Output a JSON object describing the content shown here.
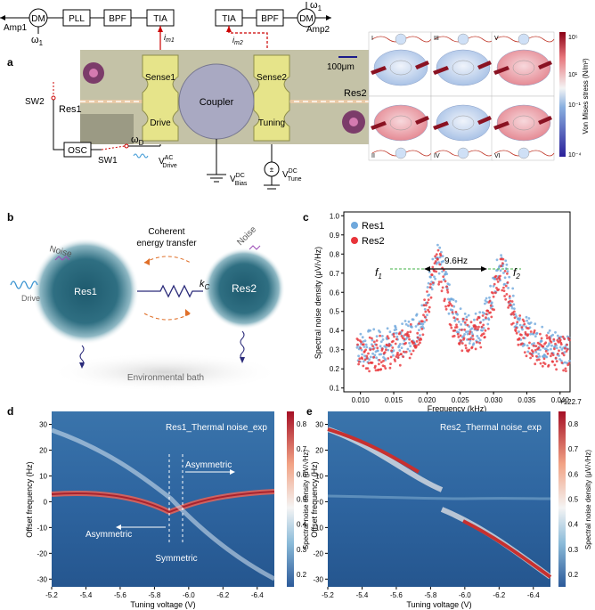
{
  "panel_labels": {
    "a": "a",
    "b": "b",
    "c": "c",
    "d": "d",
    "e": "e"
  },
  "schematic": {
    "dm_left": "DM",
    "dm_right": "DM",
    "pll": "PLL",
    "bpf_left": "BPF",
    "bpf_right": "BPF",
    "tia_left": "TIA",
    "tia_right": "TIA",
    "amp1": "Amp1",
    "amp2": "Amp2",
    "omega1_left": "ω",
    "omega1_right": "ω",
    "omega_sub": "1",
    "im1": "i",
    "im1_sub": "m1",
    "im2": "i",
    "im2_sub": "m2",
    "sw1": "SW1",
    "sw2": "SW2",
    "osc": "OSC",
    "omega_d": "ω",
    "omega_d_sub": "D",
    "v_drive": "V",
    "v_drive_sup": "AC",
    "v_drive_sub": "Drive",
    "v_bias": "V",
    "v_bias_sup": "DC",
    "v_bias_sub": "Bias",
    "v_tune": "V",
    "v_tune_sup": "DC",
    "v_tune_sub": "Tune"
  },
  "micrograph": {
    "sense1": "Sense1",
    "sense2": "Sense2",
    "drive": "Drive",
    "tuning": "Tuning",
    "coupler": "Coupler",
    "res1": "Res1",
    "res2": "Res2",
    "scale": "100μm"
  },
  "fem": {
    "labels": [
      "I",
      "II",
      "III",
      "IV",
      "V",
      "VI"
    ],
    "colorbar_label": "Von Mises stress (N/m²)",
    "ticks": [
      "10⁵",
      "10¹",
      "10⁻¹",
      "10⁻⁴"
    ]
  },
  "panel_b": {
    "noise_left": "Noise",
    "noise_right": "Noise",
    "drive": "Drive",
    "res1": "Res1",
    "res2": "Res2",
    "coherent_line1": "Coherent",
    "coherent_line2": "energy transfer",
    "kc": "k",
    "kc_sub": "C",
    "bath": "Environmental bath"
  },
  "panel_c": {
    "ylabel": "Spectral noise density (μV/√Hz)",
    "xlabel": "Frequency (kHz)",
    "offset": "+122.7",
    "legend": [
      "Res1",
      "Res2"
    ],
    "f1": "f",
    "f1_sub": "1",
    "f2": "f",
    "f2_sub": "2",
    "spacing": "9.6Hz",
    "yticks": [
      "1.0",
      "0.9",
      "0.8",
      "0.7",
      "0.6",
      "0.5",
      "0.4",
      "0.3",
      "0.2",
      "0.1"
    ],
    "xticks": [
      "0.010",
      "0.015",
      "0.020",
      "0.025",
      "0.030",
      "0.035",
      "0.040"
    ]
  },
  "panel_d": {
    "title": "Res1_Thermal noise_exp",
    "ylabel": "Offset frequency (Hz)",
    "xlabel": "Tuning voltage (V)",
    "cbar_label": "Spectral noise density (μV/√Hz)",
    "asym_top": "Asymmetric",
    "asym_bottom": "Asymmetric",
    "sym": "Symmetric",
    "yticks": [
      "30",
      "20",
      "10",
      "0",
      "-10",
      "-20",
      "-30"
    ],
    "xticks": [
      "-5.2",
      "-5.4",
      "-5.6",
      "-5.8",
      "-6.0",
      "-6.2",
      "-6.4"
    ],
    "cticks": [
      "0.8",
      "0.7",
      "0.6",
      "0.5",
      "0.4",
      "0.3",
      "0.2"
    ]
  },
  "panel_e": {
    "title": "Res2_Thermal noise_exp",
    "ylabel": "Offset frequency (Hz)",
    "xlabel": "Tuning voltage (V)",
    "cbar_label": "Spectral noise density (μV/√Hz)",
    "yticks": [
      "30",
      "20",
      "10",
      "0",
      "-10",
      "-20",
      "-30"
    ],
    "xticks": [
      "-5.2",
      "-5.4",
      "-5.6",
      "-5.8",
      "-6.0",
      "-6.2",
      "-6.4"
    ],
    "cticks": [
      "0.8",
      "0.7",
      "0.6",
      "0.5",
      "0.4",
      "0.3",
      "0.2"
    ]
  },
  "colors": {
    "res1": "#6fa8dc",
    "res2": "#e8343a",
    "fpga_red": "#cc0000",
    "pad": "#e6e48a"
  }
}
